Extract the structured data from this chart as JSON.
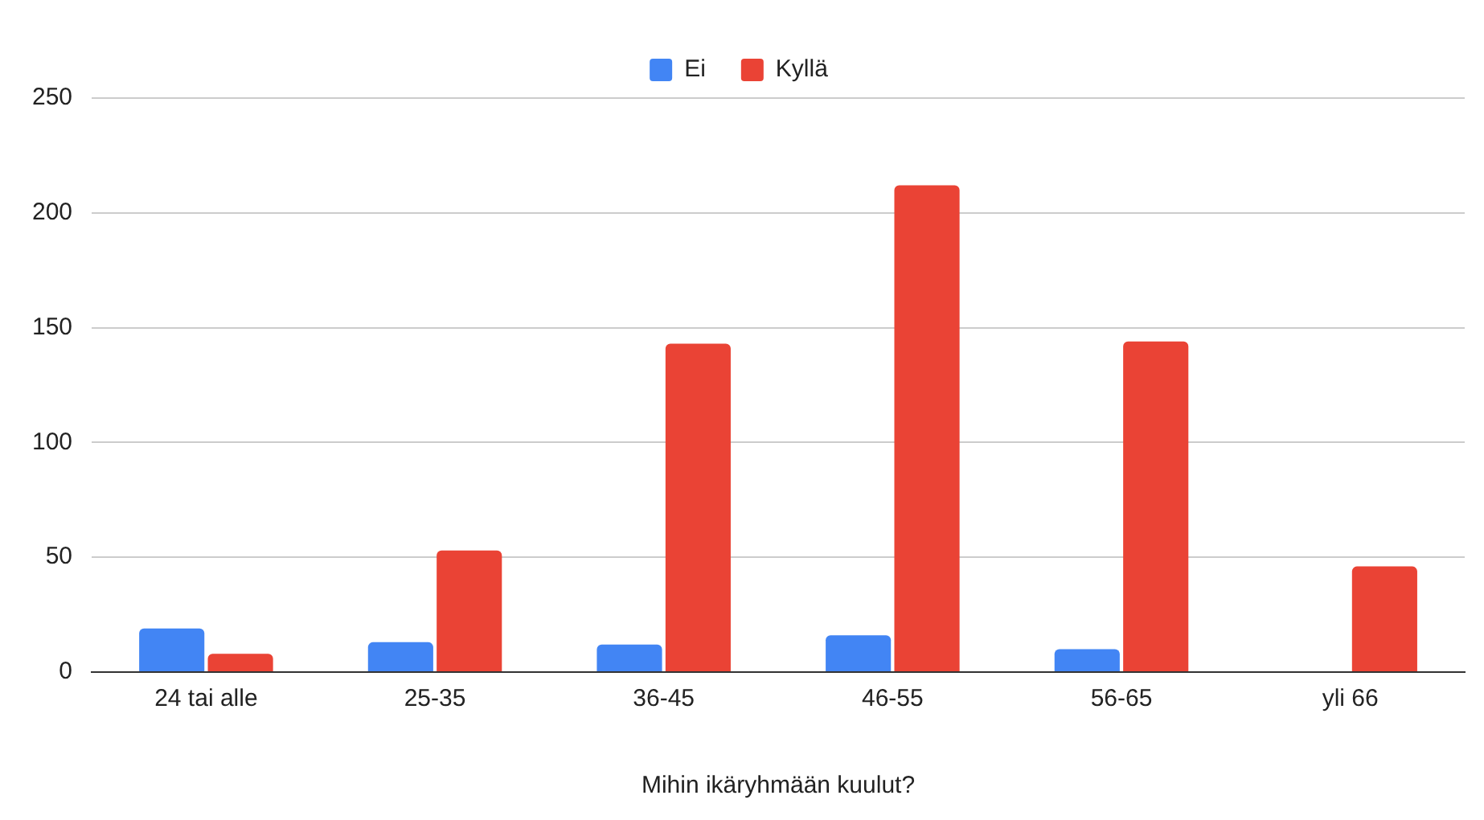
{
  "chart_data": {
    "type": "bar",
    "xlabel": "Mihin ikäryhmään kuulut?",
    "categories": [
      "24 tai alle",
      "25-35",
      "36-45",
      "46-55",
      "56-65",
      "yli 66"
    ],
    "series": [
      {
        "name": "Ei",
        "color": "#4285f4",
        "values": [
          19,
          13,
          12,
          16,
          10,
          0
        ]
      },
      {
        "name": "Kyllä",
        "color": "#ea4335",
        "values": [
          8,
          53,
          143,
          212,
          144,
          46
        ]
      }
    ],
    "ylim": [
      0,
      250
    ],
    "yticks": [
      0,
      50,
      100,
      150,
      200,
      250
    ],
    "grid": "y",
    "legend": "top"
  }
}
